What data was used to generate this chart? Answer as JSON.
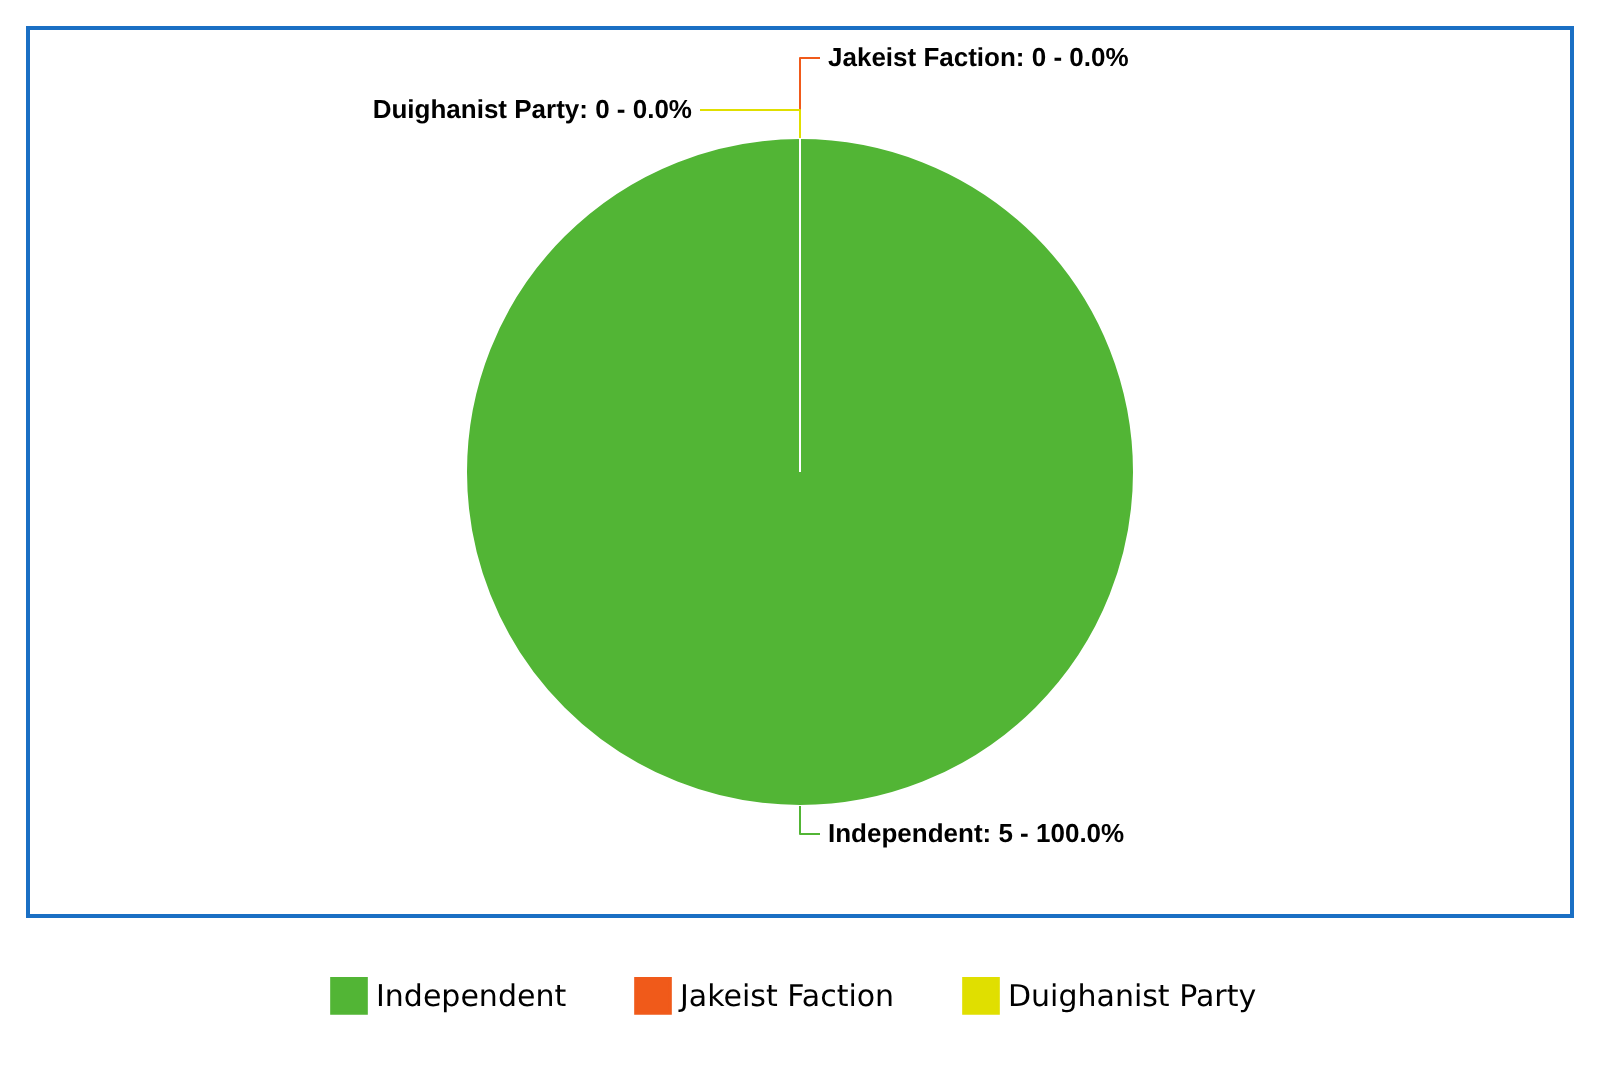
{
  "chart_data": {
    "type": "pie",
    "categories": [
      "Independent",
      "Jakeist Faction",
      "Duighanist Party"
    ],
    "values": [
      5,
      0,
      0
    ],
    "colors": [
      "#52b535",
      "#f05a1a",
      "#e0df00"
    ],
    "value_labels": [
      "Independent: 5 - 100.0%",
      "Jakeist Faction: 0 - 0.0%",
      "Duighanist Party: 0 - 0.0%"
    ],
    "legend": "bottom"
  }
}
